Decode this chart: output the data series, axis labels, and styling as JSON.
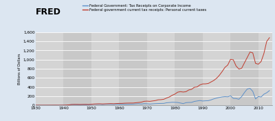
{
  "legend_entries": [
    "Federal Government: Tax Receipts on Corporate Income",
    "Federal government current tax receipts: Personal current taxes"
  ],
  "line_colors": [
    "#5b8fc9",
    "#c0392b"
  ],
  "ylabel": "Billions of Dollars",
  "xlim": [
    1930,
    2015
  ],
  "ylim": [
    0,
    1600
  ],
  "yticks": [
    0,
    200,
    400,
    600,
    800,
    1000,
    1200,
    1400,
    1600
  ],
  "xticks": [
    1930,
    1940,
    1950,
    1960,
    1970,
    1980,
    1990,
    2000,
    2010
  ],
  "fig_bg_color": "#dce6f1",
  "plot_bg_color": "#e8e8e8",
  "shaded_color": "#c8c8c8",
  "unshaded_color": "#d8d8d8",
  "corporate_tax_years": [
    1929,
    1930,
    1931,
    1932,
    1933,
    1934,
    1935,
    1936,
    1937,
    1938,
    1939,
    1940,
    1941,
    1942,
    1943,
    1944,
    1945,
    1946,
    1947,
    1948,
    1949,
    1950,
    1951,
    1952,
    1953,
    1954,
    1955,
    1956,
    1957,
    1958,
    1959,
    1960,
    1961,
    1962,
    1963,
    1964,
    1965,
    1966,
    1967,
    1968,
    1969,
    1970,
    1971,
    1972,
    1973,
    1974,
    1975,
    1976,
    1977,
    1978,
    1979,
    1980,
    1981,
    1982,
    1983,
    1984,
    1985,
    1986,
    1987,
    1988,
    1989,
    1990,
    1991,
    1992,
    1993,
    1994,
    1995,
    1996,
    1997,
    1998,
    1999,
    2000,
    2001,
    2002,
    2003,
    2004,
    2005,
    2006,
    2007,
    2008,
    2009,
    2010,
    2011,
    2012,
    2013,
    2014
  ],
  "corporate_tax_values": [
    1.3,
    1.1,
    0.6,
    0.4,
    0.5,
    0.7,
    0.9,
    1.2,
    1.4,
    1.1,
    1.4,
    2.1,
    3.8,
    9.0,
    16.0,
    14.0,
    12.5,
    11.0,
    12.5,
    12.0,
    11.0,
    18.0,
    21.5,
    21.0,
    21.5,
    16.0,
    21.0,
    22.0,
    21.5,
    18.0,
    22.0,
    21.5,
    21.0,
    21.0,
    22.0,
    23.5,
    25.5,
    30.0,
    34.0,
    28.0,
    36.5,
    32.8,
    26.8,
    32.2,
    36.2,
    38.6,
    40.6,
    41.5,
    54.9,
    60.0,
    65.7,
    64.6,
    61.1,
    49.2,
    37.0,
    56.9,
    61.3,
    63.1,
    83.9,
    94.5,
    103.3,
    93.5,
    98.1,
    100.3,
    117.5,
    140.4,
    157.0,
    171.8,
    182.3,
    188.7,
    184.7,
    207.3,
    151.1,
    148.1,
    131.8,
    189.4,
    278.3,
    353.9,
    370.2,
    304.3,
    138.2,
    191.4,
    181.1,
    242.3,
    273.5,
    320.7
  ],
  "personal_tax_years": [
    1929,
    1930,
    1931,
    1932,
    1933,
    1934,
    1935,
    1936,
    1937,
    1938,
    1939,
    1940,
    1941,
    1942,
    1943,
    1944,
    1945,
    1946,
    1947,
    1948,
    1949,
    1950,
    1951,
    1952,
    1953,
    1954,
    1955,
    1956,
    1957,
    1958,
    1959,
    1960,
    1961,
    1962,
    1963,
    1964,
    1965,
    1966,
    1967,
    1968,
    1969,
    1970,
    1971,
    1972,
    1973,
    1974,
    1975,
    1976,
    1977,
    1978,
    1979,
    1980,
    1981,
    1982,
    1983,
    1984,
    1985,
    1986,
    1987,
    1988,
    1989,
    1990,
    1991,
    1992,
    1993,
    1994,
    1995,
    1996,
    1997,
    1998,
    1999,
    2000,
    2001,
    2002,
    2003,
    2004,
    2005,
    2006,
    2007,
    2008,
    2009,
    2010,
    2011,
    2012,
    2013,
    2014
  ],
  "personal_tax_values": [
    2.6,
    2.3,
    1.9,
    1.5,
    1.5,
    1.6,
    1.8,
    2.0,
    2.2,
    1.9,
    2.2,
    2.9,
    5.0,
    10.0,
    17.0,
    19.0,
    18.7,
    17.0,
    19.0,
    19.5,
    17.5,
    22.0,
    27.5,
    30.0,
    31.5,
    29.0,
    31.0,
    33.5,
    36.0,
    34.0,
    38.0,
    40.7,
    41.3,
    45.6,
    47.6,
    48.7,
    48.8,
    55.4,
    61.5,
    68.7,
    87.2,
    90.4,
    86.2,
    94.7,
    103.2,
    119.0,
    122.4,
    131.3,
    157.6,
    180.9,
    217.8,
    244.1,
    285.9,
    298.1,
    288.9,
    297.7,
    334.5,
    348.9,
    392.6,
    401.2,
    445.7,
    466.9,
    467.8,
    476.5,
    509.7,
    543.1,
    590.2,
    656.4,
    737.5,
    828.6,
    879.5,
    1004.5,
    994.0,
    858.4,
    793.7,
    808.9,
    927.2,
    1044.0,
    1163.5,
    1145.7,
    915.3,
    898.5,
    956.0,
    1132.2,
    1394.6,
    1478.0
  ]
}
